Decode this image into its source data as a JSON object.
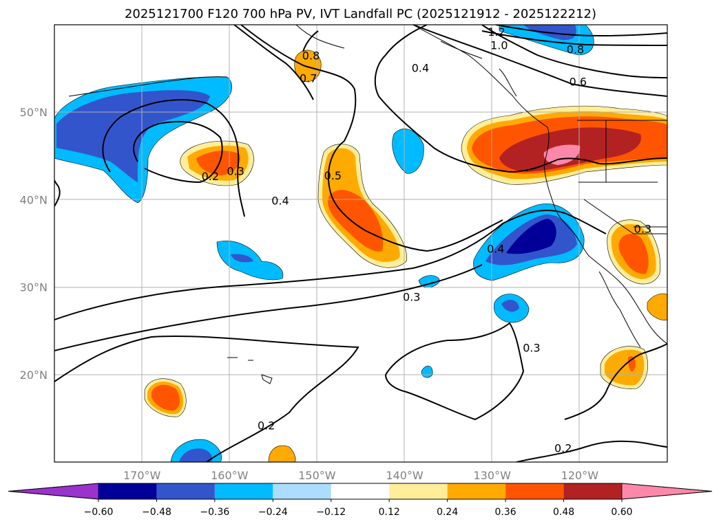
{
  "title": "2025121700 F120 700 hPa PV, IVT Landfall PC (2025121912 - 2025122212)",
  "lat_ticks": [
    {
      "lat": 50,
      "label": "50°N"
    },
    {
      "lat": 40,
      "label": "40°N"
    },
    {
      "lat": 30,
      "label": "30°N"
    },
    {
      "lat": 20,
      "label": "20°N"
    }
  ],
  "lon_ticks": [
    {
      "lon": -170,
      "label": "170°W"
    },
    {
      "lon": -160,
      "label": "160°W"
    },
    {
      "lon": -150,
      "label": "150°W"
    },
    {
      "lon": -140,
      "label": "140°W"
    },
    {
      "lon": -130,
      "label": "130°W"
    },
    {
      "lon": -120,
      "label": "120°W"
    }
  ],
  "extent": {
    "lon": [
      -180,
      -110
    ],
    "lat": [
      10,
      60
    ]
  },
  "colorbar": {
    "colors": [
      "#9933cc",
      "#000099",
      "#3355cc",
      "#00bbff",
      "#aaddff",
      "#ffffff",
      "#ffee99",
      "#ffaa00",
      "#ff5500",
      "#b22222",
      "#ff88aa"
    ],
    "labels": [
      "−0.60",
      "−0.48",
      "−0.36",
      "−0.24",
      "−0.12",
      "0.12",
      "0.24",
      "0.36",
      "0.48",
      "0.60"
    ]
  },
  "contour_labels": [
    {
      "text": "1.2",
      "lon": -129.5,
      "lat": 59.2
    },
    {
      "text": "1.0",
      "lon": -129.2,
      "lat": 57.7
    },
    {
      "text": "0.8",
      "lon": -120.5,
      "lat": 57.2
    },
    {
      "text": "0.6",
      "lon": -120.2,
      "lat": 53.5
    },
    {
      "text": "0.4",
      "lon": -138.2,
      "lat": 55.1
    },
    {
      "text": "0.8",
      "lon": -150.7,
      "lat": 56.5
    },
    {
      "text": "0.7",
      "lon": -151.0,
      "lat": 53.9
    },
    {
      "text": "0.2",
      "lon": -162.2,
      "lat": 42.7
    },
    {
      "text": "0.3",
      "lon": -159.3,
      "lat": 43.3
    },
    {
      "text": "0.4",
      "lon": -154.2,
      "lat": 39.9
    },
    {
      "text": "0.5",
      "lon": -148.2,
      "lat": 42.8
    },
    {
      "text": "0.4",
      "lon": -129.6,
      "lat": 34.4
    },
    {
      "text": "0.3",
      "lon": -139.2,
      "lat": 28.9
    },
    {
      "text": "0.3",
      "lon": -112.8,
      "lat": 36.7
    },
    {
      "text": "0.3",
      "lon": -125.5,
      "lat": 23.1
    },
    {
      "text": "0.2",
      "lon": -155.8,
      "lat": 14.2
    },
    {
      "text": "0.2",
      "lon": -121.9,
      "lat": 11.6
    }
  ]
}
